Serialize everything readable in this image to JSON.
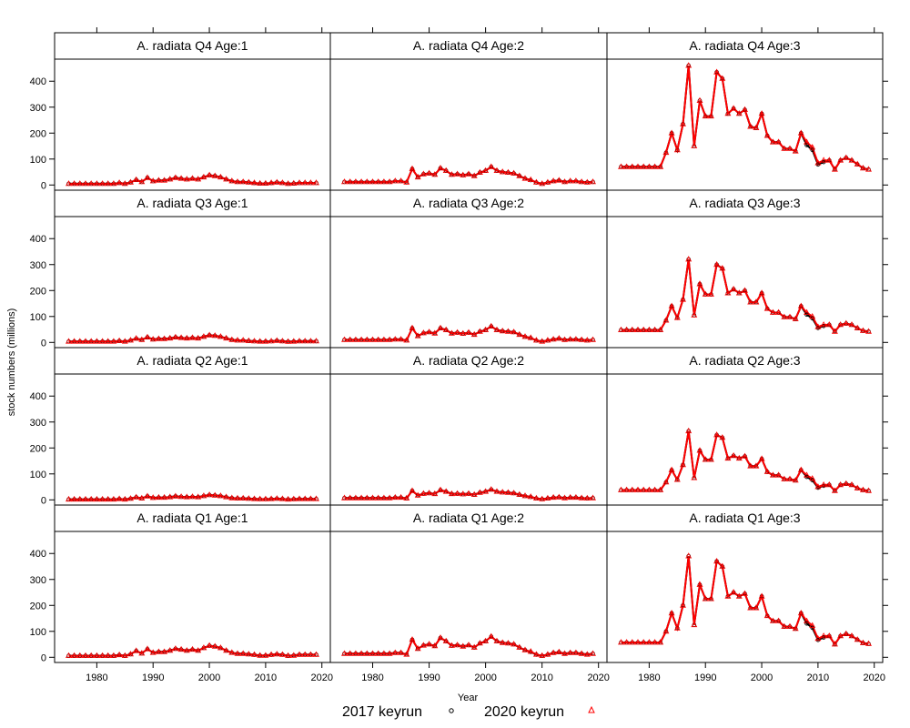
{
  "chart_data": {
    "type": "line",
    "xlabel": "Year",
    "ylabel": "stock numbers (millions)",
    "xlim": [
      1972.5,
      2021.5
    ],
    "ylim": [
      -20,
      485
    ],
    "x_ticks": [
      1980,
      1990,
      2000,
      2010,
      2020
    ],
    "y_ticks": [
      0,
      100,
      200,
      300,
      400
    ],
    "legend": {
      "placement": "bottom",
      "entries": [
        {
          "name": "2017 keyrun",
          "marker": "circle",
          "color": "#000000"
        },
        {
          "name": "2020 keyrun",
          "marker": "triangle",
          "color": "#ff0000"
        }
      ]
    },
    "years": [
      1975,
      1976,
      1977,
      1978,
      1979,
      1980,
      1981,
      1982,
      1983,
      1984,
      1985,
      1986,
      1987,
      1988,
      1989,
      1990,
      1991,
      1992,
      1993,
      1994,
      1995,
      1996,
      1997,
      1998,
      1999,
      2000,
      2001,
      2002,
      2003,
      2004,
      2005,
      2006,
      2007,
      2008,
      2009,
      2010,
      2011,
      2012,
      2013,
      2014,
      2015,
      2016,
      2017,
      2018,
      2019
    ],
    "panels": [
      {
        "label": "A. radiata Q4 Age:1",
        "row": 0,
        "col": 0,
        "values": [
          5,
          5,
          5,
          5,
          5,
          5,
          5,
          5,
          5,
          8,
          5,
          10,
          20,
          12,
          28,
          15,
          18,
          18,
          22,
          28,
          25,
          22,
          25,
          22,
          30,
          38,
          35,
          30,
          22,
          15,
          12,
          12,
          10,
          8,
          6,
          6,
          8,
          10,
          8,
          5,
          6,
          8,
          8,
          8,
          8
        ]
      },
      {
        "label": "A. radiata Q4 Age:2",
        "row": 0,
        "col": 1,
        "values": [
          12,
          12,
          12,
          12,
          12,
          12,
          12,
          12,
          12,
          15,
          15,
          10,
          62,
          30,
          42,
          45,
          40,
          65,
          55,
          40,
          42,
          38,
          42,
          35,
          48,
          55,
          70,
          55,
          50,
          48,
          45,
          35,
          25,
          20,
          10,
          5,
          10,
          15,
          18,
          12,
          15,
          15,
          12,
          10,
          12
        ]
      },
      {
        "label": "A. radiata Q4 Age:3",
        "row": 0,
        "col": 2,
        "values": [
          70,
          70,
          70,
          70,
          70,
          70,
          70,
          70,
          125,
          200,
          135,
          235,
          460,
          150,
          325,
          265,
          265,
          435,
          410,
          275,
          295,
          275,
          290,
          225,
          220,
          275,
          190,
          165,
          165,
          140,
          140,
          130,
          200,
          165,
          145,
          85,
          95,
          95,
          60,
          95,
          105,
          95,
          80,
          65,
          60
        ]
      },
      {
        "label": "A. radiata Q3 Age:1",
        "row": 1,
        "col": 0,
        "values": [
          4,
          4,
          4,
          4,
          4,
          4,
          4,
          4,
          4,
          6,
          4,
          8,
          15,
          10,
          20,
          12,
          14,
          14,
          16,
          20,
          18,
          16,
          18,
          16,
          22,
          28,
          26,
          22,
          16,
          10,
          8,
          8,
          6,
          5,
          4,
          4,
          5,
          7,
          5,
          3,
          4,
          5,
          5,
          5,
          5
        ]
      },
      {
        "label": "A. radiata Q3 Age:2",
        "row": 1,
        "col": 1,
        "values": [
          10,
          10,
          10,
          10,
          10,
          10,
          10,
          10,
          10,
          12,
          12,
          8,
          55,
          25,
          36,
          40,
          35,
          55,
          48,
          35,
          38,
          34,
          38,
          30,
          42,
          48,
          62,
          48,
          44,
          42,
          40,
          30,
          22,
          18,
          8,
          4,
          8,
          12,
          15,
          10,
          12,
          12,
          10,
          8,
          10
        ]
      },
      {
        "label": "A. radiata Q3 Age:3",
        "row": 1,
        "col": 2,
        "values": [
          48,
          48,
          48,
          48,
          48,
          48,
          48,
          48,
          85,
          140,
          95,
          165,
          320,
          105,
          225,
          185,
          185,
          300,
          285,
          190,
          205,
          190,
          200,
          155,
          155,
          190,
          130,
          115,
          115,
          98,
          98,
          90,
          140,
          115,
          100,
          60,
          68,
          68,
          42,
          68,
          73,
          68,
          55,
          45,
          42
        ]
      },
      {
        "label": "A. radiata Q2 Age:1",
        "row": 2,
        "col": 0,
        "values": [
          2,
          2,
          2,
          2,
          2,
          2,
          2,
          2,
          2,
          4,
          2,
          5,
          10,
          6,
          14,
          8,
          9,
          9,
          11,
          14,
          12,
          11,
          12,
          11,
          15,
          19,
          17,
          15,
          11,
          7,
          6,
          6,
          5,
          4,
          3,
          3,
          4,
          5,
          4,
          2,
          3,
          4,
          4,
          4,
          4
        ]
      },
      {
        "label": "A. radiata Q2 Age:2",
        "row": 2,
        "col": 1,
        "values": [
          7,
          7,
          7,
          7,
          7,
          7,
          7,
          7,
          7,
          9,
          9,
          6,
          35,
          17,
          24,
          26,
          23,
          38,
          32,
          23,
          24,
          22,
          24,
          20,
          28,
          32,
          40,
          32,
          29,
          28,
          26,
          20,
          15,
          12,
          6,
          3,
          6,
          9,
          10,
          7,
          9,
          9,
          7,
          6,
          7
        ]
      },
      {
        "label": "A. radiata Q2 Age:3",
        "row": 2,
        "col": 2,
        "values": [
          38,
          38,
          38,
          38,
          38,
          38,
          38,
          38,
          68,
          115,
          78,
          135,
          265,
          85,
          190,
          155,
          155,
          250,
          240,
          160,
          170,
          160,
          168,
          130,
          130,
          158,
          108,
          95,
          95,
          80,
          80,
          75,
          115,
          95,
          82,
          50,
          58,
          58,
          35,
          58,
          62,
          58,
          45,
          38,
          35
        ]
      },
      {
        "label": "A. radiata Q1 Age:1",
        "row": 3,
        "col": 0,
        "values": [
          6,
          6,
          6,
          6,
          6,
          6,
          6,
          6,
          6,
          9,
          6,
          12,
          25,
          15,
          32,
          18,
          21,
          21,
          26,
          33,
          30,
          26,
          30,
          26,
          36,
          45,
          42,
          36,
          26,
          18,
          14,
          14,
          12,
          10,
          7,
          7,
          10,
          12,
          10,
          6,
          7,
          10,
          10,
          10,
          10
        ]
      },
      {
        "label": "A. radiata Q1 Age:2",
        "row": 3,
        "col": 1,
        "values": [
          14,
          14,
          14,
          14,
          14,
          14,
          14,
          14,
          14,
          17,
          17,
          11,
          68,
          33,
          46,
          50,
          44,
          75,
          62,
          45,
          47,
          42,
          47,
          38,
          54,
          62,
          80,
          62,
          56,
          54,
          50,
          38,
          28,
          22,
          11,
          6,
          11,
          17,
          20,
          14,
          17,
          17,
          14,
          11,
          14
        ]
      },
      {
        "label": "A. radiata Q1 Age:3",
        "row": 3,
        "col": 2,
        "values": [
          57,
          57,
          57,
          57,
          57,
          57,
          57,
          57,
          100,
          170,
          112,
          200,
          390,
          125,
          280,
          225,
          225,
          370,
          350,
          235,
          250,
          235,
          245,
          190,
          190,
          235,
          160,
          140,
          140,
          118,
          118,
          110,
          170,
          140,
          122,
          72,
          82,
          82,
          50,
          82,
          90,
          82,
          68,
          55,
          52
        ]
      }
    ]
  }
}
